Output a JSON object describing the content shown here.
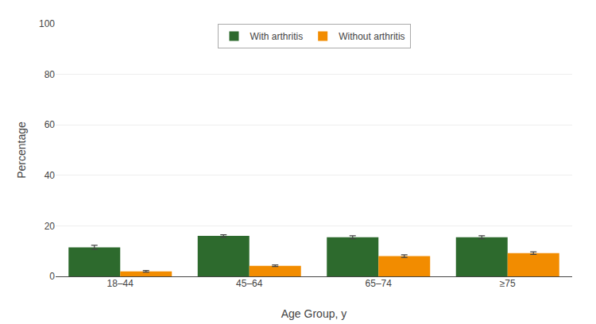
{
  "chart_data": {
    "type": "bar",
    "categories": [
      "18–44",
      "45–64",
      "65–74",
      "≥75"
    ],
    "series": [
      {
        "name": "With arthritis",
        "color": "#2d6a2d",
        "values": [
          11.5,
          16.0,
          15.5,
          15.5
        ],
        "errors": [
          0.8,
          0.5,
          0.6,
          0.6
        ]
      },
      {
        "name": "Without arthritis",
        "color": "#f28c00",
        "values": [
          2.0,
          4.2,
          8.0,
          9.2
        ],
        "errors": [
          0.3,
          0.3,
          0.5,
          0.5
        ]
      }
    ],
    "xlabel": "Age Group, y",
    "ylabel": "Percentage",
    "ylim": [
      0,
      100
    ],
    "yticks": [
      0,
      20,
      40,
      60,
      80,
      100
    ],
    "grid": true,
    "legend": "top"
  }
}
